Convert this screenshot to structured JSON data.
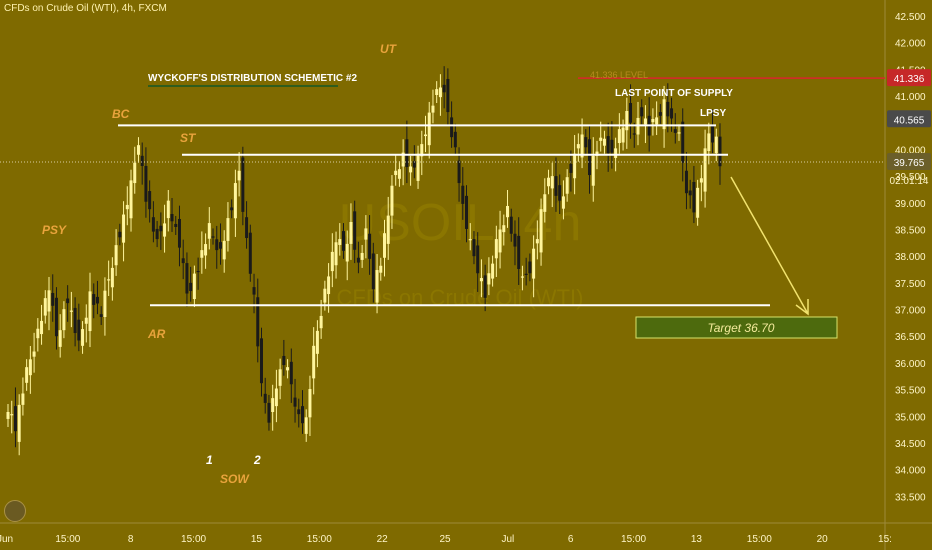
{
  "header": {
    "symbol_line": "CFDs on Crude Oil (WTI), 4h, FXCM"
  },
  "watermark": {
    "text": "USOIL, 4h",
    "subtext": "CFDs on Crude Oil (WTI)"
  },
  "colors": {
    "background": "#7f6a00",
    "up_candle": "#fff59c",
    "down_candle": "#1a1a1a",
    "level_line": "#ffffff",
    "label_orange": "#e8a33c",
    "label_white": "#ffffff",
    "title_underline": "#2f5d1d",
    "target_box": "#4d6a0d",
    "target_border": "#d8e46a",
    "target_text": "#f4ea9c",
    "arrow": "#f2e36e",
    "resistance_line": "#d9262c",
    "price_tag_red": "#c62828",
    "price_tag_gray": "#4a4a4a",
    "axis_text": "#fff6c8"
  },
  "annotations": {
    "title": "WYCKOFF'S DISTRIBUTION SCHEMETIC #2",
    "psy": "PSY",
    "bc": "BC",
    "st": "ST",
    "ar": "AR",
    "ut": "UT",
    "sow": "SOW",
    "one": "1",
    "two": "2",
    "last_point_of_supply": "LAST POINT OF SUPPLY",
    "lpsy": "LPSY",
    "target": "Target 36.70",
    "red_label": "41.336 LEVEL"
  },
  "price_tags": {
    "resistance": "41.336",
    "level": "40.565",
    "last": "39.765",
    "countdown": "02:01:14"
  },
  "chart_data": {
    "type": "candlestick",
    "title": "CFDs on Crude Oil (WTI), 4h, FXCM",
    "y_axis": {
      "range": [
        33.0,
        42.8
      ],
      "ticks": [
        "33.500",
        "34.000",
        "34.500",
        "35.000",
        "35.500",
        "36.000",
        "36.500",
        "37.000",
        "37.500",
        "38.000",
        "38.500",
        "39.000",
        "39.500",
        "40.000",
        "40.500",
        "41.000",
        "41.500",
        "42.000",
        "42.500"
      ]
    },
    "x_axis": {
      "ticks": [
        "Jun",
        "15:00",
        "8",
        "15:00",
        "15",
        "15:00",
        "22",
        "25",
        "Jul",
        "6",
        "15:00",
        "13",
        "15:00",
        "20",
        "15:"
      ]
    },
    "levels": [
      {
        "name": "BC level",
        "value": 40.45
      },
      {
        "name": "ST level",
        "value": 39.9
      },
      {
        "name": "AR level",
        "value": 37.08
      },
      {
        "name": "Resistance",
        "value": 41.336
      }
    ],
    "target": 36.7,
    "last_price": 39.765,
    "price_path": [
      [
        0,
        35.2
      ],
      [
        2,
        34.8
      ],
      [
        5,
        35.8
      ],
      [
        8,
        36.6
      ],
      [
        11,
        37.4
      ],
      [
        13,
        36.5
      ],
      [
        16,
        37.2
      ],
      [
        19,
        36.3
      ],
      [
        22,
        37.3
      ],
      [
        25,
        36.9
      ],
      [
        28,
        37.9
      ],
      [
        31,
        38.7
      ],
      [
        33,
        39.3
      ],
      [
        35,
        40.2
      ],
      [
        37,
        39.1
      ],
      [
        40,
        38.2
      ],
      [
        43,
        39.0
      ],
      [
        46,
        38.2
      ],
      [
        48,
        37.3
      ],
      [
        51,
        37.8
      ],
      [
        54,
        38.5
      ],
      [
        57,
        38.1
      ],
      [
        60,
        38.9
      ],
      [
        62,
        39.6
      ],
      [
        64,
        38.3
      ],
      [
        66,
        37.2
      ],
      [
        68,
        35.5
      ],
      [
        70,
        35.0
      ],
      [
        72,
        35.6
      ],
      [
        74,
        36.0
      ],
      [
        76,
        35.6
      ],
      [
        78,
        35.0
      ],
      [
        80,
        34.9
      ],
      [
        82,
        36.2
      ],
      [
        84,
        37.0
      ],
      [
        86,
        37.7
      ],
      [
        88,
        38.3
      ],
      [
        90,
        38.1
      ],
      [
        92,
        38.6
      ],
      [
        94,
        37.8
      ],
      [
        96,
        38.4
      ],
      [
        98,
        37.5
      ],
      [
        100,
        37.9
      ],
      [
        102,
        38.8
      ],
      [
        104,
        39.6
      ],
      [
        106,
        39.9
      ],
      [
        108,
        39.6
      ],
      [
        110,
        39.8
      ],
      [
        112,
        40.4
      ],
      [
        114,
        40.9
      ],
      [
        116,
        41.2
      ],
      [
        118,
        40.7
      ],
      [
        120,
        40.0
      ],
      [
        122,
        38.9
      ],
      [
        124,
        38.2
      ],
      [
        126,
        37.8
      ],
      [
        128,
        37.3
      ],
      [
        130,
        37.9
      ],
      [
        132,
        38.5
      ],
      [
        134,
        38.9
      ],
      [
        136,
        38.1
      ],
      [
        138,
        37.5
      ],
      [
        140,
        37.8
      ],
      [
        142,
        38.4
      ],
      [
        144,
        39.2
      ],
      [
        146,
        39.5
      ],
      [
        148,
        39.0
      ],
      [
        150,
        39.4
      ],
      [
        152,
        39.8
      ],
      [
        154,
        40.4
      ],
      [
        156,
        39.6
      ],
      [
        158,
        40.0
      ],
      [
        160,
        40.2
      ],
      [
        162,
        39.9
      ],
      [
        164,
        40.3
      ],
      [
        166,
        40.6
      ],
      [
        168,
        40.4
      ],
      [
        170,
        40.7
      ],
      [
        172,
        40.3
      ],
      [
        174,
        40.6
      ],
      [
        176,
        40.9
      ],
      [
        178,
        40.5
      ],
      [
        180,
        40.2
      ],
      [
        182,
        39.3
      ],
      [
        184,
        38.9
      ],
      [
        186,
        39.5
      ],
      [
        188,
        40.3
      ],
      [
        190,
        40.2
      ],
      [
        191,
        39.765
      ]
    ]
  }
}
